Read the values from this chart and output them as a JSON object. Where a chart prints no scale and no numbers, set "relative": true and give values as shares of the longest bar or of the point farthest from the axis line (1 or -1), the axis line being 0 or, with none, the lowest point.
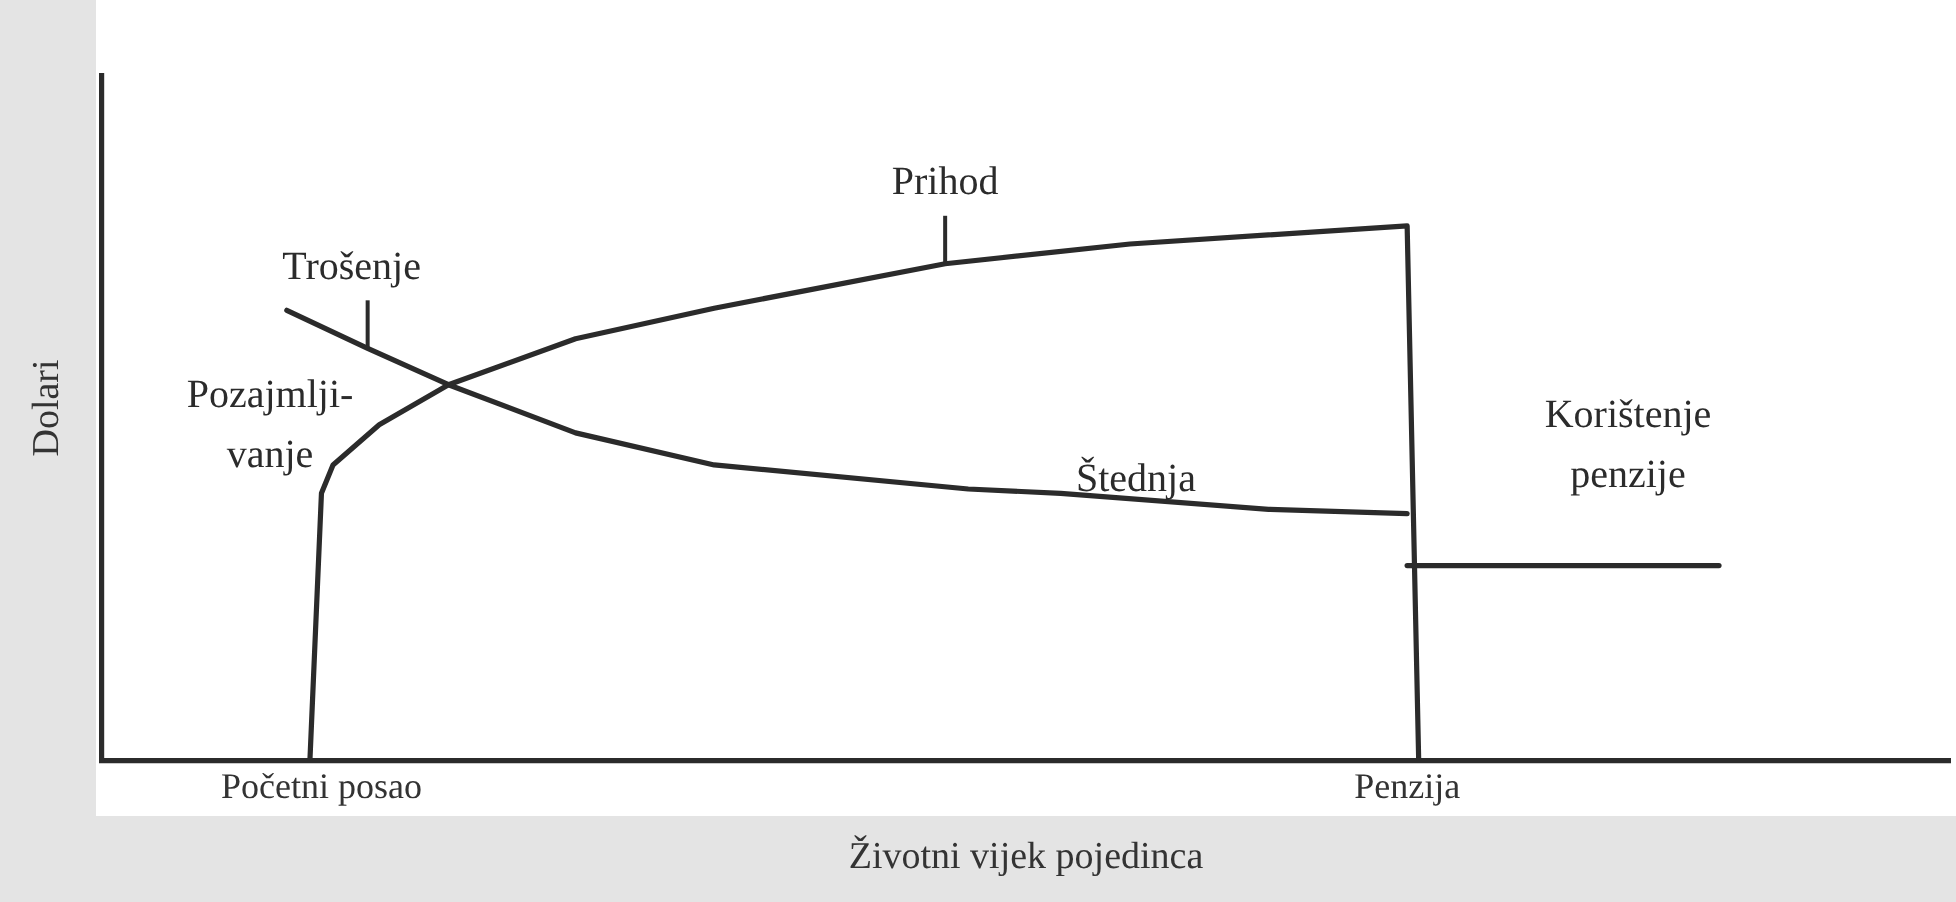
{
  "chart_data": {
    "type": "line",
    "relative": true,
    "xlabel": "Životni vijek pojedinca",
    "ylabel": "Dolari",
    "categories": [
      null,
      null,
      null,
      null,
      null,
      null,
      null,
      null,
      null,
      null,
      null,
      null,
      null,
      null,
      null,
      null,
      null,
      null,
      null,
      "Početni posao",
      null,
      null,
      null,
      null,
      null,
      null,
      null,
      null,
      null,
      null,
      null,
      null,
      null,
      null,
      null,
      null,
      null,
      null,
      null,
      null,
      null,
      null,
      null,
      null,
      null,
      null,
      null,
      null,
      null,
      null,
      null,
      null,
      null,
      null,
      null,
      null,
      null,
      null,
      null,
      null,
      null,
      null,
      null,
      null,
      null,
      null,
      null,
      null,
      null,
      null,
      null,
      null,
      null,
      null,
      null,
      null,
      null,
      null,
      null,
      null,
      null,
      null,
      null,
      null,
      null,
      null,
      null,
      null,
      null,
      null,
      null,
      null,
      null,
      null,
      null,
      null,
      null,
      null,
      null,
      null,
      null,
      null,
      null,
      null,
      null,
      null,
      null,
      null,
      null,
      null,
      null,
      null,
      null,
      "Penzija",
      null,
      null,
      null,
      null,
      null,
      null,
      null,
      null,
      null,
      null,
      null,
      null,
      null,
      null,
      null,
      null,
      null,
      null,
      null,
      null,
      null,
      null,
      null,
      null,
      null,
      null,
      null,
      null,
      null,
      null,
      null,
      null,
      null,
      null,
      null,
      null,
      null,
      null,
      null,
      null,
      null,
      null,
      null,
      null,
      null,
      null,
      null
    ],
    "series": [
      {
        "name": "Prihod",
        "color": "#2b2b2b",
        "values": [
          null,
          null,
          null,
          null,
          null,
          null,
          null,
          null,
          null,
          null,
          null,
          null,
          null,
          null,
          null,
          null,
          null,
          null,
          0,
          0.5,
          0.553,
          null,
          null,
          null,
          0.628,
          null,
          null,
          null,
          null,
          null,
          0.703,
          null,
          null,
          null,
          null,
          null,
          null,
          null,
          null,
          null,
          null,
          0.789,
          null,
          null,
          null,
          null,
          null,
          null,
          null,
          null,
          null,
          null,
          null,
          0.846,
          null,
          null,
          null,
          null,
          null,
          null,
          null,
          null,
          null,
          null,
          null,
          null,
          null,
          null,
          null,
          null,
          null,
          null,
          null,
          0.929,
          null,
          null,
          null,
          null,
          null,
          null,
          null,
          null,
          null,
          null,
          null,
          null,
          null,
          null,
          null,
          0.966,
          null,
          null,
          null,
          null,
          null,
          null,
          null,
          null,
          null,
          null,
          null,
          null,
          null,
          null,
          null,
          null,
          null,
          null,
          null,
          null,
          null,
          null,
          null,
          1,
          0,
          null,
          null,
          null,
          null,
          null,
          null,
          null,
          null,
          null,
          null,
          null,
          null,
          null,
          null,
          null,
          null,
          null,
          null,
          null,
          null,
          null,
          null,
          null,
          null,
          null,
          null,
          null,
          null,
          null,
          null,
          null,
          null,
          null,
          null,
          null,
          null,
          null,
          null,
          null,
          null,
          null,
          null,
          null,
          null,
          null,
          null
        ]
      },
      {
        "name": "Trošenje",
        "color": "#2b2b2b",
        "values": [
          null,
          null,
          null,
          null,
          null,
          null,
          null,
          null,
          null,
          null,
          null,
          null,
          null,
          null,
          null,
          null,
          0.842,
          null,
          null,
          null,
          null,
          null,
          null,
          0.771,
          null,
          null,
          null,
          null,
          null,
          null,
          0.703,
          null,
          null,
          null,
          null,
          null,
          null,
          null,
          null,
          null,
          null,
          0.613,
          null,
          null,
          null,
          null,
          null,
          null,
          null,
          null,
          null,
          null,
          null,
          0.553,
          null,
          null,
          null,
          null,
          null,
          null,
          null,
          null,
          null,
          null,
          null,
          null,
          null,
          null,
          null,
          null,
          null,
          null,
          null,
          null,
          null,
          0.508,
          null,
          null,
          null,
          null,
          null,
          null,
          null,
          0.5,
          null,
          null,
          null,
          null,
          null,
          null,
          null,
          null,
          null,
          null,
          null,
          null,
          null,
          null,
          null,
          null,
          null,
          0.47,
          null,
          null,
          null,
          null,
          null,
          null,
          null,
          null,
          null,
          null,
          null,
          0.462,
          null,
          null,
          null,
          null,
          null,
          null,
          null,
          null,
          null,
          null,
          null,
          null,
          null,
          null,
          null,
          null,
          null,
          null,
          null,
          null,
          null,
          null,
          null,
          null,
          null,
          null,
          null,
          null,
          null,
          null,
          null,
          null,
          null,
          null,
          null,
          null,
          null,
          null,
          null,
          null,
          null,
          null,
          null,
          null,
          null,
          null,
          null
        ]
      },
      {
        "color": "#2b2b2b",
        "values": [
          null,
          null,
          null,
          null,
          null,
          null,
          null,
          null,
          null,
          null,
          null,
          null,
          null,
          null,
          null,
          null,
          null,
          null,
          null,
          null,
          null,
          null,
          null,
          null,
          null,
          null,
          null,
          null,
          null,
          null,
          null,
          null,
          null,
          null,
          null,
          null,
          null,
          null,
          null,
          null,
          null,
          null,
          null,
          null,
          null,
          null,
          null,
          null,
          null,
          null,
          null,
          null,
          null,
          null,
          null,
          null,
          null,
          null,
          null,
          null,
          null,
          null,
          null,
          null,
          null,
          null,
          null,
          null,
          null,
          null,
          null,
          null,
          null,
          null,
          null,
          null,
          null,
          null,
          null,
          null,
          null,
          null,
          null,
          null,
          null,
          null,
          null,
          null,
          null,
          null,
          null,
          null,
          null,
          null,
          null,
          null,
          null,
          null,
          null,
          null,
          null,
          null,
          null,
          null,
          null,
          null,
          null,
          null,
          null,
          null,
          null,
          null,
          null,
          0.365,
          null,
          null,
          null,
          null,
          null,
          null,
          null,
          null,
          null,
          null,
          null,
          null,
          null,
          null,
          null,
          null,
          null,
          null,
          null,
          null,
          null,
          null,
          null,
          null,
          null,
          null,
          0.365,
          null,
          null,
          null,
          null,
          null,
          null,
          null,
          null,
          null,
          null,
          null,
          null,
          null,
          null,
          null,
          null,
          null,
          null,
          null,
          null
        ]
      }
    ],
    "annotations": [
      "Pozajmlji-\nvanje",
      "Štednja",
      "Korištenje\npenzije"
    ],
    "grid": false,
    "legend": false,
    "marker": "none",
    "line_style": "solid"
  }
}
